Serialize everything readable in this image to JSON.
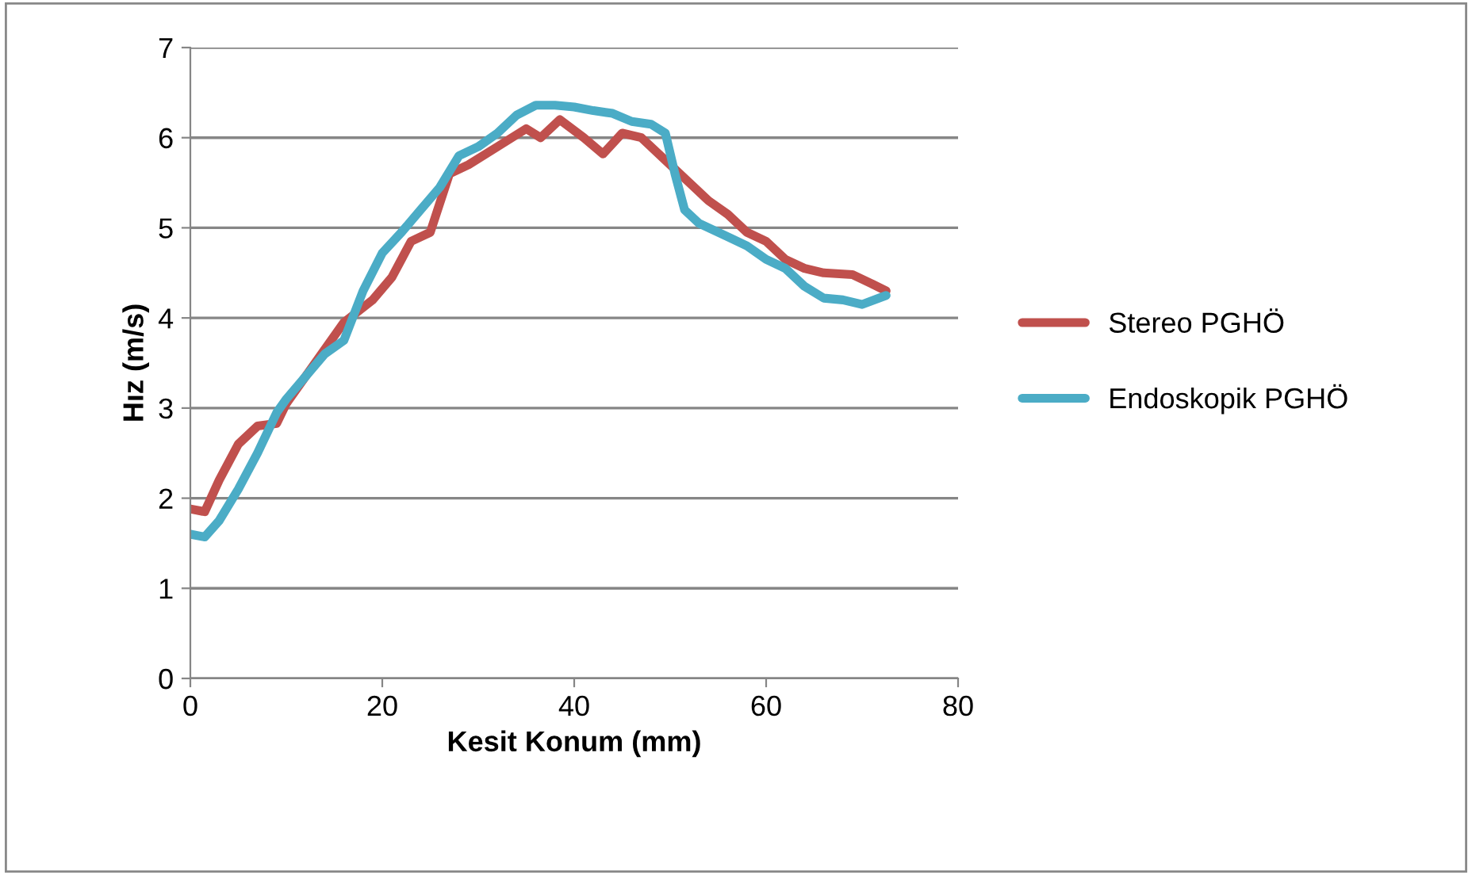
{
  "chart_data": {
    "type": "line",
    "xlabel": "Kesit Konum (mm)",
    "ylabel": "Hız (m/s)",
    "xlim": [
      0,
      80
    ],
    "xticks": [
      0,
      20,
      40,
      60,
      80
    ],
    "ylim": [
      0,
      7
    ],
    "yticks": [
      0,
      1,
      2,
      3,
      4,
      5,
      6,
      7
    ],
    "grid": "y",
    "legend": "right",
    "marker": "none",
    "line_style": "solid",
    "series": [
      {
        "name": "Stereo PGHÖ",
        "color": "#c0504d",
        "x": [
          0,
          1.5,
          3,
          5,
          7,
          9,
          10,
          13,
          16,
          19,
          21,
          23,
          25,
          27,
          29,
          32,
          35,
          36.5,
          38.5,
          41,
          43,
          45,
          47,
          50,
          52,
          54,
          56,
          58,
          60,
          62,
          64,
          66,
          69,
          71,
          72.5
        ],
        "values": [
          1.88,
          1.85,
          2.2,
          2.6,
          2.8,
          2.83,
          3.05,
          3.5,
          3.95,
          4.2,
          4.45,
          4.85,
          4.95,
          5.6,
          5.7,
          5.9,
          6.1,
          6.0,
          6.2,
          6.0,
          5.82,
          6.05,
          6.0,
          5.7,
          5.5,
          5.3,
          5.15,
          4.95,
          4.85,
          4.65,
          4.55,
          4.5,
          4.48,
          4.38,
          4.3
        ]
      },
      {
        "name": "Endoskopik PGHÖ",
        "color": "#4bacc6",
        "x": [
          0,
          1.5,
          3,
          5,
          7,
          9,
          10,
          12,
          14,
          16,
          18,
          20,
          22,
          24,
          26,
          28,
          30,
          32,
          34,
          36,
          38,
          40,
          42,
          44,
          46,
          48,
          49.5,
          50.5,
          51.5,
          53,
          56,
          58,
          60,
          62,
          64,
          66,
          68,
          70,
          72.5
        ],
        "values": [
          1.6,
          1.57,
          1.75,
          2.1,
          2.5,
          2.95,
          3.1,
          3.35,
          3.6,
          3.75,
          4.3,
          4.72,
          4.95,
          5.2,
          5.45,
          5.8,
          5.9,
          6.05,
          6.25,
          6.36,
          6.36,
          6.34,
          6.3,
          6.27,
          6.18,
          6.15,
          6.05,
          5.6,
          5.2,
          5.05,
          4.9,
          4.8,
          4.65,
          4.55,
          4.35,
          4.22,
          4.2,
          4.15,
          4.25
        ]
      }
    ]
  }
}
